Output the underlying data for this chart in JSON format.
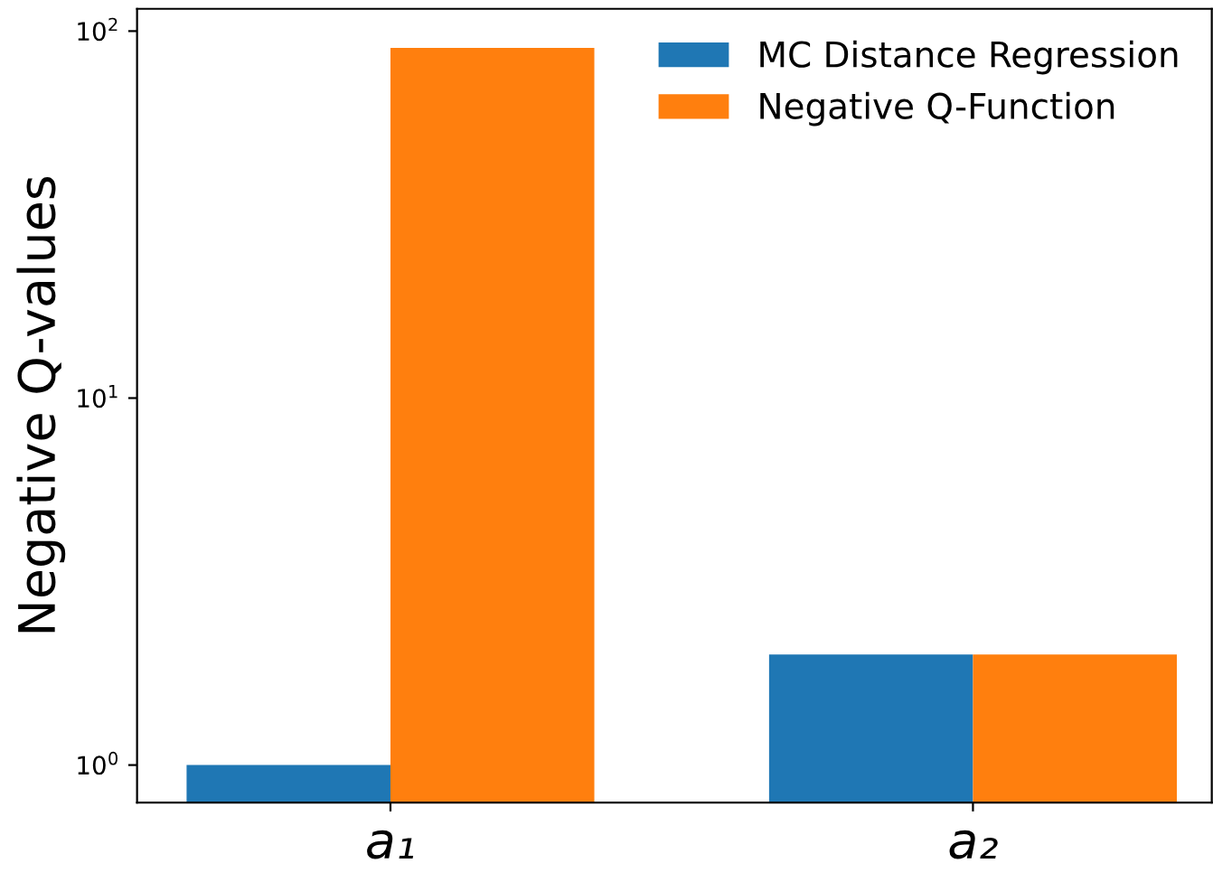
{
  "chart_data": {
    "type": "bar",
    "ylabel": "Negative Q-values",
    "categories": [
      "a₁",
      "a₂"
    ],
    "series": [
      {
        "name": "MC Distance Regression",
        "color": "#1f77b4",
        "values": [
          1.0,
          2.0
        ]
      },
      {
        "name": "Negative Q-Function",
        "color": "#ff7f0e",
        "values": [
          90,
          2.0
        ]
      }
    ],
    "log": true,
    "ylim": [
      0.79,
      115
    ],
    "yticks": [
      {
        "value": 1,
        "label": "10$^{0}$"
      },
      {
        "value": 10,
        "label": "10$^{1}$"
      },
      {
        "value": 100,
        "label": "10$^{2}$"
      }
    ],
    "legend": "top right",
    "grid": false
  }
}
